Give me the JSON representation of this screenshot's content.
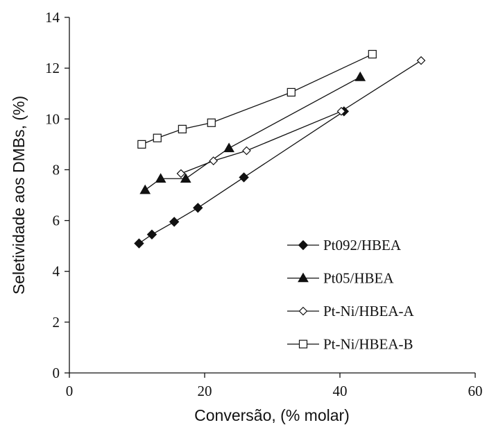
{
  "chart_data": {
    "type": "line",
    "xlabel": "Conversão, (% molar)",
    "ylabel": "Seletividade aos DMBs, (%)",
    "xlim": [
      0,
      60
    ],
    "ylim": [
      0,
      14
    ],
    "xticks": [
      "0",
      "20",
      "40",
      "60"
    ],
    "yticks": [
      "0",
      "2",
      "4",
      "6",
      "8",
      "10",
      "12",
      "14"
    ],
    "grid": false,
    "legend_position": "bottom-right",
    "series": [
      {
        "name": "Pt092/HBEA",
        "marker": "diamond-filled",
        "x": [
          10.3,
          12.2,
          15.5,
          19.0,
          25.8,
          40.6
        ],
        "y": [
          5.1,
          5.45,
          5.95,
          6.5,
          7.7,
          10.3
        ]
      },
      {
        "name": "Pt05/HBEA",
        "marker": "triangle-filled",
        "x": [
          11.2,
          13.5,
          17.2,
          23.6,
          43.0
        ],
        "y": [
          7.2,
          7.65,
          7.65,
          8.85,
          11.65
        ]
      },
      {
        "name": "Pt-Ni/HBEA-A",
        "marker": "diamond-open",
        "x": [
          16.5,
          21.3,
          26.2,
          40.2,
          52.0
        ],
        "y": [
          7.85,
          8.35,
          8.75,
          10.3,
          12.3
        ]
      },
      {
        "name": "Pt-Ni/HBEA-B",
        "marker": "square-open",
        "x": [
          10.7,
          13.0,
          16.7,
          21.0,
          32.8,
          44.8
        ],
        "y": [
          9.0,
          9.25,
          9.6,
          9.85,
          11.05,
          12.55
        ]
      }
    ]
  }
}
